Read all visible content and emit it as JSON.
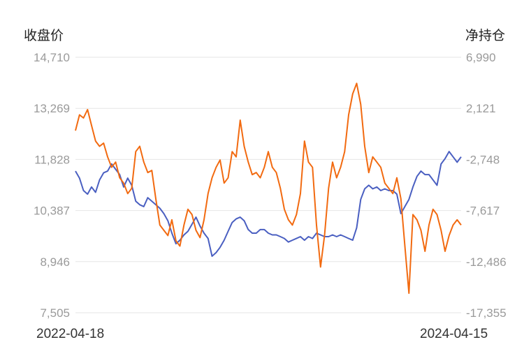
{
  "chart_data": {
    "type": "line",
    "left_axis_title": "收盘价",
    "right_axis_title": "净持仓",
    "x_start_label": "2022-04-18",
    "x_end_label": "2024-04-15",
    "y_left_ticks": [
      "14,710",
      "13,269",
      "11,828",
      "10,387",
      "8,946",
      "7,505"
    ],
    "y_left_range": [
      7505,
      14710
    ],
    "y_right_ticks": [
      "6,990",
      "2,121",
      "-2,748",
      "-7,617",
      "-12,486",
      "-17,355"
    ],
    "y_right_range": [
      -17355,
      6990
    ],
    "grid": true,
    "colors": {
      "close": "#4a5fc1",
      "net": "#f26a10",
      "grid": "#e6e6e6"
    },
    "series": [
      {
        "key": "close",
        "axis": "left",
        "values": [
          11500,
          11300,
          10950,
          10850,
          11050,
          10900,
          11250,
          11450,
          11500,
          11700,
          11550,
          11400,
          11050,
          11300,
          11100,
          10650,
          10550,
          10500,
          10750,
          10650,
          10550,
          10450,
          10300,
          10100,
          9750,
          9450,
          9550,
          9700,
          9800,
          10000,
          10200,
          9950,
          9750,
          9600,
          9100,
          9200,
          9350,
          9550,
          9800,
          10050,
          10150,
          10200,
          10100,
          9850,
          9750,
          9750,
          9850,
          9850,
          9750,
          9700,
          9700,
          9650,
          9600,
          9500,
          9550,
          9600,
          9650,
          9550,
          9650,
          9600,
          9750,
          9700,
          9650,
          9650,
          9700,
          9650,
          9700,
          9650,
          9600,
          9550,
          9900,
          10700,
          11000,
          11100,
          11000,
          11050,
          10950,
          11000,
          10950,
          10950,
          10850,
          10300,
          10500,
          10700,
          11050,
          11350,
          11500,
          11400,
          11400,
          11250,
          11100,
          11700,
          11850,
          12050,
          11900,
          11750,
          11900
        ]
      },
      {
        "key": "net",
        "axis": "right",
        "values": [
          0,
          1500,
          1200,
          2000,
          500,
          -1000,
          -1500,
          -1200,
          -2500,
          -3500,
          -3000,
          -4500,
          -5000,
          -6000,
          -5500,
          -2000,
          -1500,
          -3000,
          -4000,
          -3800,
          -6500,
          -9000,
          -9500,
          -10000,
          -8500,
          -10500,
          -11000,
          -9000,
          -7500,
          -8000,
          -9500,
          -10200,
          -8500,
          -6000,
          -4500,
          -3500,
          -2800,
          -5000,
          -4500,
          -2000,
          -2500,
          1000,
          -1500,
          -3000,
          -4200,
          -4000,
          -4500,
          -3500,
          -2000,
          -3500,
          -4000,
          -5500,
          -7500,
          -8500,
          -9000,
          -8000,
          -6000,
          -1000,
          -3000,
          -3500,
          -9000,
          -13000,
          -10000,
          -5500,
          -3000,
          -4500,
          -3500,
          -2000,
          1500,
          3500,
          4500,
          2500,
          -1500,
          -4000,
          -2500,
          -3000,
          -3500,
          -5000,
          -5500,
          -6000,
          -4500,
          -6500,
          -11000,
          -15500,
          -8000,
          -8500,
          -9500,
          -11500,
          -9000,
          -7500,
          -8000,
          -9500,
          -11500,
          -10000,
          -9000,
          -8500,
          -9000
        ]
      }
    ]
  }
}
